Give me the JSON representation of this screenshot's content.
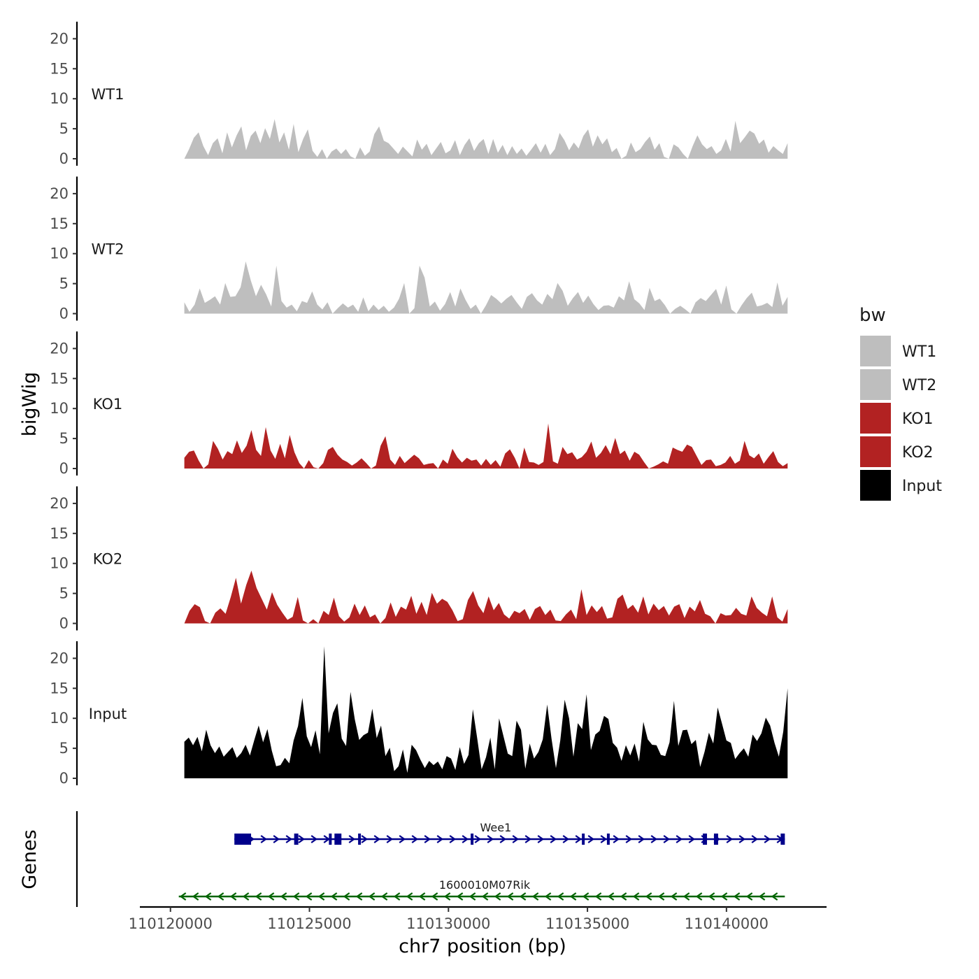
{
  "chart_data": {
    "type": "area",
    "subtype": "genome-browser-tracks",
    "xlabel": "chr7 position (bp)",
    "ylabel": "bigWig",
    "genes_axis_label": "Genes",
    "x_range": [
      110120500,
      110142200
    ],
    "x_axis_limits": [
      110119000,
      110143500
    ],
    "x_ticks": [
      110120000,
      110125000,
      110130000,
      110135000,
      110140000
    ],
    "x_tick_labels": [
      "110120000",
      "110125000",
      "110130000",
      "110135000",
      "110140000"
    ],
    "y_ticks": [
      0,
      5,
      10,
      15,
      20
    ],
    "y_tick_labels": [
      "0",
      "5",
      "10",
      "15",
      "20"
    ],
    "ylim": [
      0,
      22
    ],
    "legend_title": "bw",
    "tracks": [
      {
        "name": "WT1",
        "color": "#bebebe",
        "values": [
          0,
          1.6,
          3.5,
          4.4,
          2.1,
          0.6,
          2.6,
          3.4,
          0.9,
          4.4,
          1.9,
          3.9,
          5.4,
          1.4,
          3.8,
          4.7,
          2.6,
          5.1,
          3.3,
          6.6,
          2.7,
          4.4,
          1.5,
          5.8,
          1.1,
          3.3,
          4.9,
          1.3,
          0.3,
          1.6,
          0,
          1.2,
          1.7,
          0.8,
          1.6,
          0.4,
          0,
          1.9,
          0.5,
          1.2,
          4.1,
          5.4,
          3.0,
          2.6,
          1.7,
          0.8,
          2.0,
          1.2,
          0.4,
          3.2,
          1.5,
          2.5,
          0.6,
          1.7,
          2.8,
          0.9,
          1.4,
          3.1,
          0.6,
          2.3,
          3.4,
          1.3,
          2.6,
          3.3,
          0.8,
          3.3,
          1.0,
          2.3,
          0.6,
          2.1,
          0.8,
          1.7,
          0.5,
          1.5,
          2.6,
          1.0,
          2.5,
          0.6,
          1.6,
          4.3,
          3.1,
          1.4,
          2.7,
          1.7,
          3.8,
          4.9,
          2.0,
          3.9,
          2.4,
          3.4,
          1.1,
          1.8,
          0,
          0.5,
          2.7,
          1.1,
          1.6,
          2.8,
          3.7,
          1.5,
          2.6,
          0.3,
          0,
          2.4,
          1.9,
          0.8,
          0,
          2.1,
          3.9,
          2.4,
          1.6,
          2.1,
          0.8,
          1.4,
          3.3,
          1.2,
          6.3,
          2.6,
          3.6,
          4.7,
          4.2,
          2.5,
          3.2,
          1.0,
          2.1,
          1.4,
          0.8,
          2.6
        ]
      },
      {
        "name": "WT2",
        "color": "#bebebe",
        "values": [
          1.9,
          0.3,
          1.5,
          4.2,
          1.8,
          2.3,
          2.9,
          1.5,
          5.1,
          2.8,
          2.9,
          4.4,
          8.7,
          5.5,
          2.9,
          4.8,
          3.2,
          1.2,
          8.0,
          2.1,
          1.0,
          1.5,
          0.4,
          2.1,
          1.8,
          3.7,
          1.5,
          0.7,
          1.9,
          0,
          0.9,
          1.7,
          1.0,
          1.5,
          0.3,
          2.7,
          0.4,
          1.5,
          0.6,
          1.3,
          0.3,
          1.0,
          2.5,
          5.1,
          0,
          0.9,
          8.0,
          6.0,
          1.2,
          2.0,
          0.5,
          1.6,
          3.6,
          1.2,
          4.2,
          2.3,
          0.8,
          1.5,
          0,
          1.4,
          3.1,
          2.5,
          1.7,
          2.5,
          3.1,
          1.9,
          0.8,
          2.8,
          3.4,
          2.2,
          1.5,
          3.3,
          2.4,
          5.1,
          3.8,
          1.3,
          2.6,
          3.6,
          1.8,
          3.0,
          1.6,
          0.6,
          1.3,
          1.4,
          1.0,
          2.9,
          2.2,
          5.4,
          2.4,
          1.7,
          0.6,
          4.3,
          2.1,
          2.5,
          1.4,
          0,
          0.8,
          1.3,
          0.7,
          0,
          1.9,
          2.6,
          2.1,
          3.1,
          4.1,
          1.5,
          4.7,
          0.7,
          0,
          1.4,
          2.6,
          3.5,
          1.2,
          1.4,
          1.8,
          1.1,
          5.2,
          1.3,
          2.8
        ]
      },
      {
        "name": "KO1",
        "color": "#b22222",
        "values": [
          1.8,
          2.8,
          3.0,
          1.3,
          0,
          0.7,
          4.6,
          3.3,
          1.5,
          2.9,
          2.4,
          4.7,
          2.6,
          3.8,
          6.4,
          3.1,
          2.1,
          6.9,
          3.0,
          1.6,
          4.1,
          1.7,
          5.6,
          2.7,
          0.9,
          0,
          1.4,
          0.2,
          0,
          0.9,
          3.1,
          3.6,
          2.3,
          1.5,
          1.1,
          0.5,
          1.0,
          1.7,
          0.9,
          0,
          0.5,
          3.8,
          5.4,
          1.5,
          0.6,
          2.1,
          0.9,
          1.6,
          2.3,
          1.7,
          0.6,
          0.8,
          0.9,
          0,
          1.5,
          0.8,
          3.3,
          1.9,
          1.0,
          1.8,
          1.3,
          1.5,
          0.5,
          1.6,
          0.6,
          1.4,
          0.3,
          2.5,
          3.2,
          1.8,
          0,
          3.5,
          1.1,
          1.0,
          0.6,
          1.1,
          7.5,
          1.2,
          0.8,
          3.6,
          2.4,
          2.7,
          1.5,
          1.9,
          2.8,
          4.5,
          1.8,
          2.6,
          3.9,
          2.4,
          5.1,
          2.4,
          3.0,
          1.3,
          2.8,
          2.3,
          1.1,
          0,
          0.3,
          0.7,
          1.2,
          0.8,
          3.5,
          3.1,
          2.8,
          4.0,
          3.6,
          2.1,
          0.6,
          1.4,
          1.5,
          0.4,
          0.6,
          1.0,
          2.1,
          0.8,
          1.3,
          4.6,
          2.2,
          1.7,
          2.5,
          0.8,
          1.9,
          2.9,
          1.1,
          0.4,
          0.9
        ]
      },
      {
        "name": "KO2",
        "color": "#b22222",
        "values": [
          0,
          2.1,
          3.2,
          2.7,
          0.4,
          0,
          1.8,
          2.5,
          1.6,
          4.4,
          7.6,
          3.3,
          6.4,
          8.8,
          5.9,
          4.1,
          2.3,
          5.2,
          3.1,
          1.8,
          0.6,
          1.1,
          4.4,
          0.5,
          0,
          0.7,
          0,
          2.1,
          1.4,
          4.3,
          1.2,
          0.3,
          1.0,
          3.3,
          1.4,
          3.0,
          1.0,
          1.5,
          0,
          0.9,
          3.5,
          1.1,
          2.8,
          2.3,
          4.6,
          1.6,
          3.6,
          1.4,
          5.1,
          3.3,
          4.1,
          3.6,
          2.2,
          0.4,
          0.7,
          3.9,
          5.4,
          3.0,
          1.7,
          4.5,
          2.2,
          3.4,
          1.5,
          0.8,
          2.1,
          1.7,
          2.4,
          0.6,
          2.4,
          2.9,
          1.4,
          2.3,
          0.5,
          0.4,
          1.5,
          2.3,
          0.7,
          5.7,
          1.4,
          3.0,
          1.9,
          2.9,
          0.8,
          1.0,
          4.1,
          4.8,
          2.4,
          3.1,
          1.8,
          4.5,
          1.5,
          3.3,
          2.2,
          2.9,
          1.3,
          2.8,
          3.2,
          0.9,
          2.8,
          2.0,
          3.9,
          1.6,
          1.2,
          0,
          1.7,
          1.3,
          1.4,
          2.6,
          1.6,
          1.3,
          4.5,
          2.6,
          1.8,
          1.2,
          4.5,
          1.0,
          0.3,
          2.4
        ]
      },
      {
        "name": "Input",
        "color": "#000000",
        "values": [
          6.1,
          6.8,
          5.5,
          6.9,
          4.5,
          8.1,
          5.5,
          4.2,
          5.3,
          3.6,
          4.4,
          5.2,
          3.4,
          4.2,
          5.6,
          3.8,
          6.4,
          8.8,
          6.0,
          8.2,
          4.6,
          2.0,
          2.2,
          3.4,
          2.5,
          6.3,
          8.7,
          13.4,
          7.0,
          5.2,
          8.0,
          4.0,
          22.0,
          7.5,
          10.9,
          12.5,
          6.6,
          5.4,
          14.4,
          9.8,
          6.4,
          7.2,
          7.6,
          11.6,
          6.7,
          8.8,
          3.7,
          5.1,
          1.2,
          2.0,
          4.8,
          0.9,
          5.6,
          4.7,
          3.1,
          1.7,
          2.9,
          2.2,
          2.8,
          1.5,
          3.7,
          3.3,
          1.4,
          5.2,
          2.4,
          3.9,
          11.5,
          6.6,
          1.5,
          3.5,
          6.8,
          1.5,
          10.0,
          7.0,
          4.1,
          3.7,
          9.6,
          8.1,
          1.6,
          5.8,
          3.3,
          4.4,
          6.5,
          12.3,
          6.6,
          1.7,
          6.3,
          13.1,
          10.0,
          3.6,
          9.2,
          8.2,
          14.0,
          4.7,
          7.3,
          7.9,
          10.4,
          9.9,
          5.9,
          5.1,
          2.9,
          5.5,
          3.8,
          5.8,
          2.8,
          9.4,
          6.5,
          5.6,
          5.5,
          3.9,
          3.7,
          6.0,
          12.9,
          5.4,
          8.0,
          8.1,
          5.7,
          6.4,
          1.9,
          4.4,
          7.6,
          5.8,
          11.8,
          9.1,
          6.3,
          5.9,
          3.2,
          4.2,
          5.0,
          3.6,
          7.3,
          6.2,
          7.5,
          10.1,
          8.8,
          5.9,
          3.6,
          7.8,
          15.0
        ]
      }
    ],
    "genes": [
      {
        "name": "Wee1",
        "start": 110122300,
        "end": 110142100,
        "strand": "+",
        "color": "#00008b",
        "exons": [
          [
            110122300,
            110122900
          ],
          [
            110124450,
            110124600
          ],
          [
            110125700,
            110125760
          ],
          [
            110125900,
            110126150
          ],
          [
            110126750,
            110126850
          ],
          [
            110130800,
            110130900
          ],
          [
            110134800,
            110134880
          ],
          [
            110135700,
            110135780
          ],
          [
            110139150,
            110139300
          ],
          [
            110139550,
            110139700
          ],
          [
            110141950,
            110142100
          ]
        ]
      },
      {
        "name": "1600010M07Rik",
        "start": 110120300,
        "end": 110142100,
        "strand": "-",
        "color": "#006400",
        "exons": []
      }
    ]
  }
}
